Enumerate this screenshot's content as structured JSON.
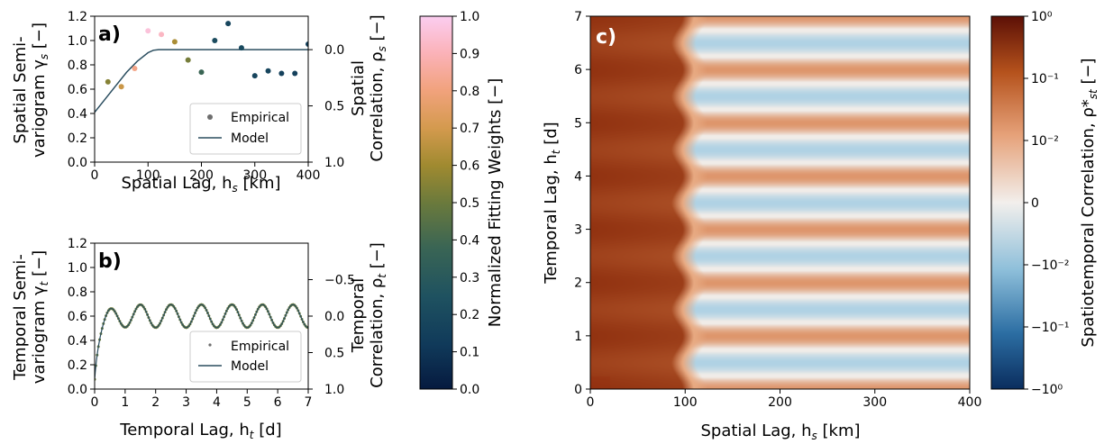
{
  "chart_data": [
    {
      "panel": "a)",
      "type": "scatter",
      "ylabel_line1": "Spatial Semi-",
      "ylabel_line2": "variogram γ",
      "ylabel_sub": "s",
      "ylabel_suffix": " [−]",
      "xlabel": "Spatial Lag, h",
      "xlabel_sub": "s",
      "xlabel_suffix": " [km]",
      "y2label_line1": "Spatial",
      "y2label_line2": "Correlation, ρ",
      "y2label_sub": "s",
      "y2label_suffix": " [−]",
      "xlim": [
        0,
        400
      ],
      "ylim": [
        0,
        1.2
      ],
      "xticks": [
        "0",
        "100",
        "200",
        "300",
        "400"
      ],
      "yticks": [
        "0.0",
        "0.2",
        "0.4",
        "0.6",
        "0.8",
        "1.0",
        "1.2"
      ],
      "y2ticks": [
        "0.0",
        "0.5",
        "1.0"
      ],
      "legend": [
        "Empirical",
        "Model"
      ],
      "legend_position": "lower-right",
      "empirical": {
        "x": [
          25,
          50,
          75,
          100,
          125,
          150,
          175,
          200,
          225,
          250,
          275,
          300,
          325,
          350,
          375,
          400
        ],
        "y": [
          0.66,
          0.62,
          0.77,
          1.08,
          1.05,
          0.99,
          0.84,
          0.74,
          1.0,
          1.14,
          0.94,
          0.71,
          0.75,
          0.73,
          0.73,
          0.97
        ],
        "weight": [
          0.55,
          0.68,
          0.82,
          0.96,
          0.92,
          0.62,
          0.52,
          0.38,
          0.22,
          0.18,
          0.2,
          0.18,
          0.18,
          0.16,
          0.16,
          0.16
        ]
      },
      "model": {
        "x": [
          0,
          20,
          40,
          60,
          80,
          100,
          110,
          120,
          140,
          200,
          300,
          400
        ],
        "y": [
          0.41,
          0.52,
          0.63,
          0.74,
          0.83,
          0.9,
          0.92,
          0.925,
          0.925,
          0.925,
          0.925,
          0.925
        ]
      }
    },
    {
      "panel": "b)",
      "type": "scatter",
      "ylabel_line1": "Temporal Semi-",
      "ylabel_line2": "variogram γ",
      "ylabel_sub": "t",
      "ylabel_suffix": " [−]",
      "xlabel": "Temporal Lag, h",
      "xlabel_sub": "t",
      "xlabel_suffix": " [d]",
      "y2label_line1": "Temporal",
      "y2label_line2": "Correlation, ρ",
      "y2label_sub": "t",
      "y2label_suffix": " [−]",
      "xlim": [
        0,
        7
      ],
      "ylim": [
        0,
        1.2
      ],
      "xticks": [
        "0",
        "1",
        "2",
        "3",
        "4",
        "5",
        "6",
        "7"
      ],
      "yticks": [
        "0.0",
        "0.2",
        "0.4",
        "0.6",
        "0.8",
        "1.0",
        "1.2"
      ],
      "y2ticks": [
        "−0.5",
        "0.0",
        "0.5",
        "1.0"
      ],
      "legend": [
        "Empirical",
        "Model"
      ],
      "legend_position": "lower-right",
      "model_description_values": {
        "nugget": 0.08,
        "sill": 0.6,
        "amplitude": 0.095,
        "period_days": 1.0
      }
    },
    {
      "panel": "c)",
      "type": "heatmap",
      "xlabel": "Spatial Lag, h",
      "xlabel_sub": "s",
      "xlabel_suffix": " [km]",
      "ylabel": "Temporal Lag, h",
      "ylabel_sub": "t",
      "ylabel_suffix": " [d]",
      "xlim": [
        0,
        400
      ],
      "ylim": [
        0,
        7
      ],
      "xticks": [
        "0",
        "100",
        "200",
        "300",
        "400"
      ],
      "yticks": [
        "0",
        "1",
        "2",
        "3",
        "4",
        "5",
        "6",
        "7"
      ],
      "colorbar_label": "Spatiotemporal Correlation, ρ*",
      "colorbar_sub": "st",
      "colorbar_suffix": " [−]",
      "colorbar_ticks": [
        "10⁰",
        "10⁻¹",
        "10⁻²",
        "0",
        "−10⁻²",
        "−10⁻¹",
        "−10⁰"
      ],
      "spatial_range_km": 105
    }
  ],
  "weights_colorbar": {
    "label": "Normalized Fitting Weights [−]",
    "ticks": [
      "0.0",
      "0.1",
      "0.2",
      "0.3",
      "0.4",
      "0.5",
      "0.6",
      "0.7",
      "0.8",
      "0.9",
      "1.0"
    ],
    "range": [
      0,
      1
    ]
  },
  "colors": {
    "model_line": "#2a4d5f",
    "legend_marker": "#6e6e6e"
  }
}
